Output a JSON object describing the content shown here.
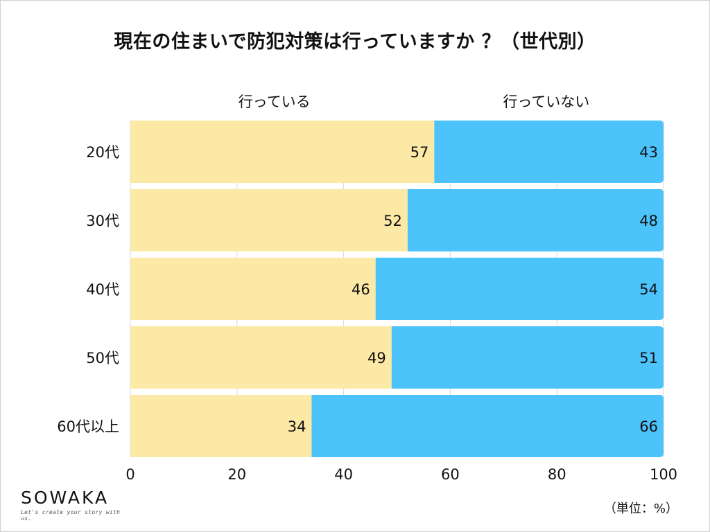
{
  "chart_data": {
    "type": "bar",
    "orientation": "horizontal",
    "stacked": true,
    "title": "現在の住まいで防犯対策は行っていますか ？（世代別）",
    "categories": [
      "20代",
      "30代",
      "40代",
      "50代",
      "60代以上"
    ],
    "series": [
      {
        "name": "行っている",
        "values": [
          57,
          52,
          46,
          49,
          34
        ],
        "color": "#fce9a6"
      },
      {
        "name": "行っていない",
        "values": [
          43,
          48,
          54,
          51,
          66
        ],
        "color": "#4cc3fb"
      }
    ],
    "xlim": [
      0,
      100
    ],
    "xticks": [
      "0",
      "20",
      "40",
      "60",
      "80",
      "100"
    ],
    "grid": true,
    "legend": "top",
    "unit_note": "（単位：%）"
  },
  "branding": {
    "name": "SOWAKA",
    "tagline": "Let's create your story with us."
  }
}
